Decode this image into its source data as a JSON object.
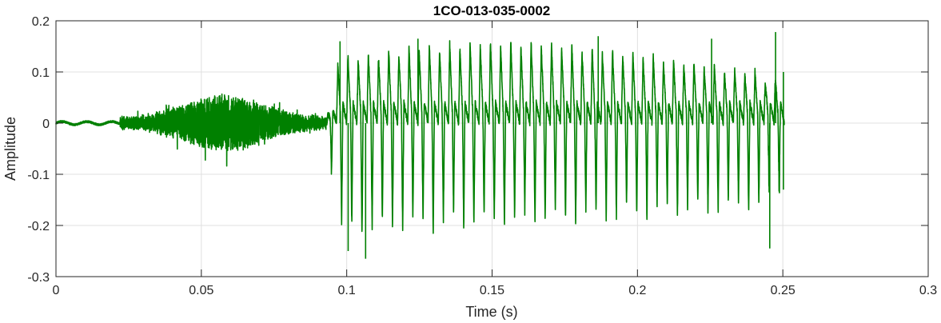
{
  "chart_data": {
    "type": "line",
    "title": "1CO-013-035-0002",
    "xlabel": "Time (s)",
    "ylabel": "Amplitude",
    "xlim": [
      0,
      0.3
    ],
    "ylim": [
      -0.3,
      0.2
    ],
    "xticks": [
      0,
      0.05,
      0.1,
      0.15,
      0.2,
      0.25,
      0.3
    ],
    "xtick_labels": [
      "0",
      "0.05",
      "0.1",
      "0.15",
      "0.2",
      "0.25",
      "0.3"
    ],
    "yticks": [
      0.2,
      0.1,
      0,
      -0.1,
      -0.2,
      -0.3
    ],
    "ytick_labels": [
      "0.2",
      "0.1",
      "0",
      "-0.1",
      "-0.2",
      "-0.3"
    ],
    "grid": true,
    "legend": "none",
    "line_color": "#008000",
    "series": [
      {
        "segments": [
          {
            "t0": 0.0,
            "t1": 0.022,
            "kind": "noise",
            "min": -0.008,
            "max": 0.008
          },
          {
            "t0": 0.022,
            "t1": 0.093,
            "kind": "noise_envelope",
            "peak_time": 0.058,
            "min": -0.097,
            "max": 0.087
          },
          {
            "t0": 0.093,
            "t1": 0.2505,
            "kind": "periodic",
            "period_s": 0.0035,
            "max": 0.178,
            "min": -0.265
          }
        ],
        "peaks": [
          {
            "t": 0.0977,
            "y": 0.16
          },
          {
            "t": 0.1005,
            "y": -0.25
          },
          {
            "t": 0.1065,
            "y": -0.265
          },
          {
            "t": 0.1245,
            "y": 0.165
          },
          {
            "t": 0.1865,
            "y": 0.17
          },
          {
            "t": 0.2255,
            "y": 0.165
          },
          {
            "t": 0.2475,
            "y": 0.178
          },
          {
            "t": 0.2455,
            "y": -0.245
          },
          {
            "t": 0.2502,
            "y": 0.1
          },
          {
            "t": 0.2502,
            "y": -0.13
          }
        ]
      }
    ]
  }
}
